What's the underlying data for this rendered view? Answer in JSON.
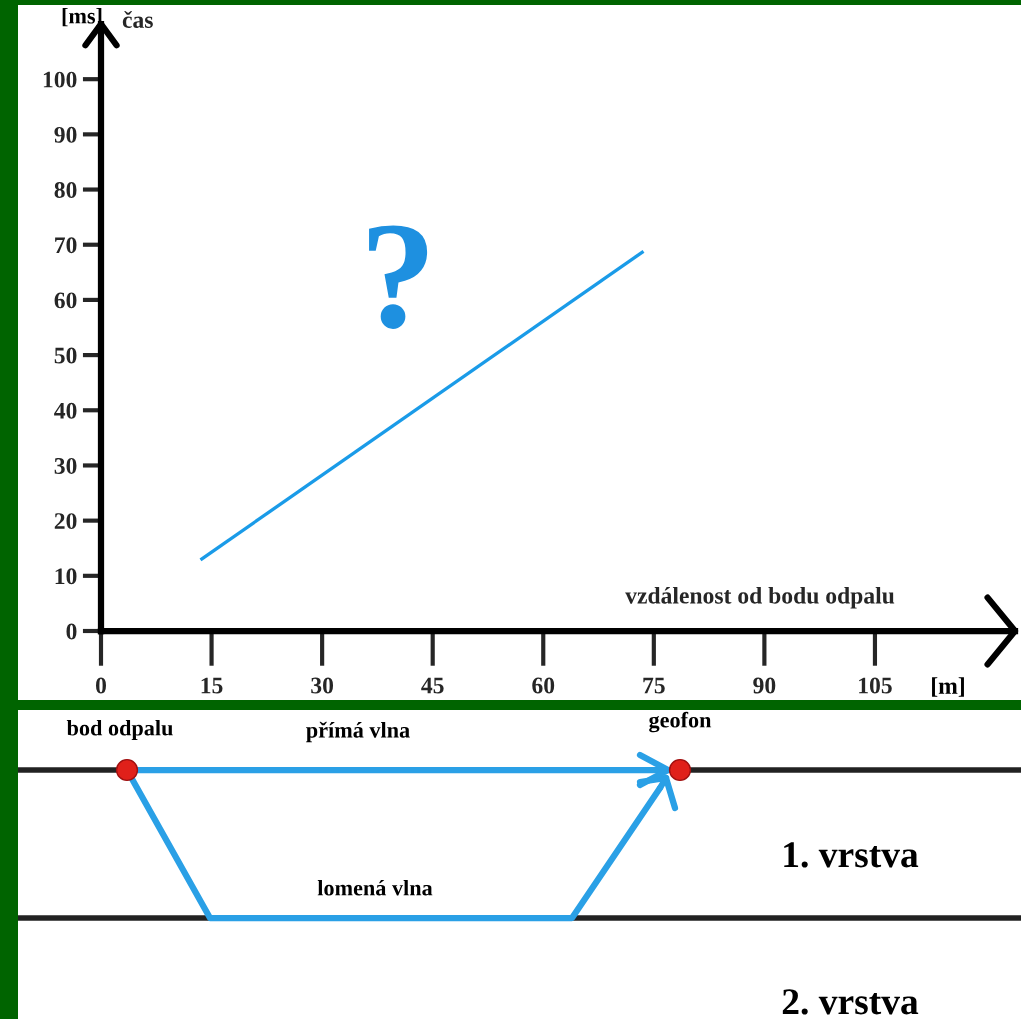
{
  "chart_data": [
    {
      "type": "line",
      "xlabel": "vzdálenost od bodu odpalu",
      "ylabel": "čas",
      "annotations": [
        "[ms]",
        "[m]",
        "?"
      ],
      "series": [
        {
          "color": "#1a9be8",
          "x": [
            13.5,
            73.6
          ],
          "values": [
            12.9,
            68.8
          ]
        }
      ],
      "xlim": [
        0,
        124
      ],
      "ylim": [
        0,
        110
      ],
      "xticks": [
        0,
        15,
        30,
        45,
        60,
        75,
        90,
        105
      ],
      "yticks": [
        0,
        10,
        20,
        30,
        40,
        50,
        60,
        70,
        80,
        90,
        100
      ],
      "grid": false,
      "legend": false
    },
    {
      "type": "other",
      "annotations": [
        "bod odpalu",
        "přímá vlna",
        "geofon",
        "1. vrstva",
        "lomená vlna",
        "2. vrstva"
      ]
    }
  ]
}
